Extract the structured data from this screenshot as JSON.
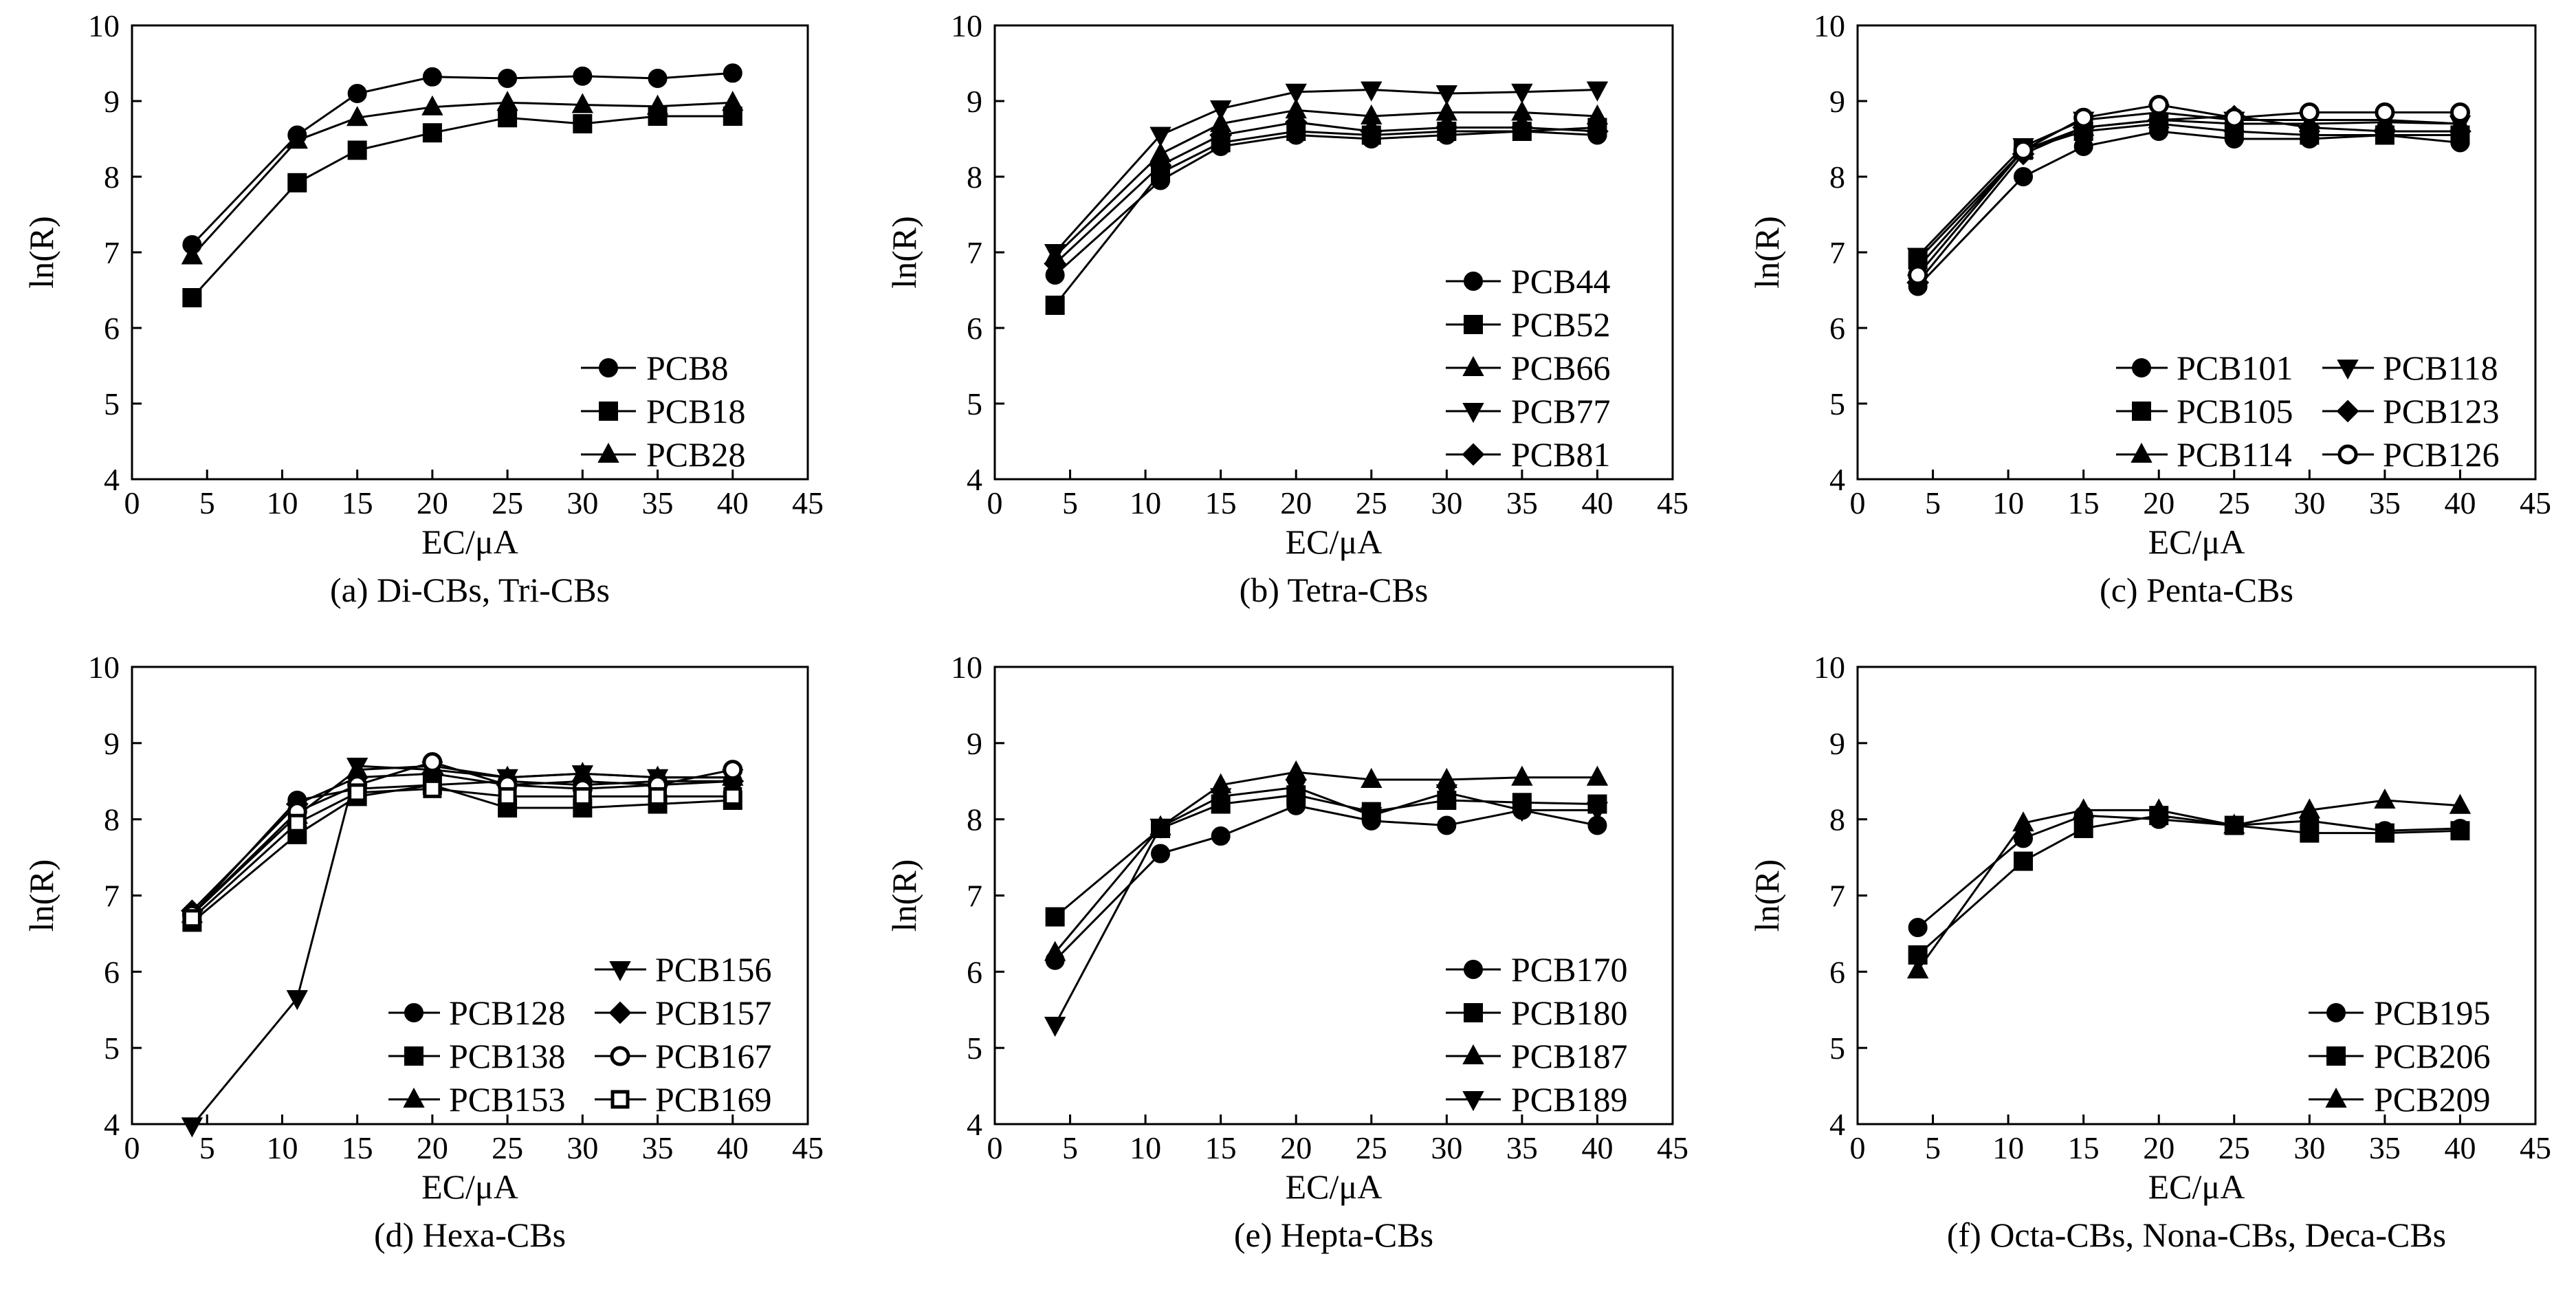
{
  "figure": {
    "panels": [
      {
        "caption": "(a) Di-CBs, Tri-CBs"
      },
      {
        "caption": "(b) Tetra-CBs"
      },
      {
        "caption": "(c) Penta-CBs"
      },
      {
        "caption": "(d) Hexa-CBs"
      },
      {
        "caption": "(e) Hepta-CBs"
      },
      {
        "caption": "(f) Octa-CBs, Nona-CBs, Deca-CBs"
      }
    ]
  },
  "chart_data": [
    {
      "type": "line",
      "caption": "(a) Di-CBs, Tri-CBs",
      "xlabel": "EC/μA",
      "ylabel": "ln(R)",
      "xlim": [
        0,
        45
      ],
      "ylim": [
        4,
        10
      ],
      "xticks": [
        0,
        5,
        10,
        15,
        20,
        25,
        30,
        35,
        40,
        45
      ],
      "yticks": [
        4,
        5,
        6,
        7,
        8,
        9,
        10
      ],
      "x": [
        4,
        11,
        15,
        20,
        25,
        30,
        35,
        40
      ],
      "legend_position": "bottom-right",
      "legend_columns": 1,
      "series": [
        {
          "name": "PCB8",
          "marker": "circle",
          "values": [
            7.1,
            8.55,
            9.1,
            9.32,
            9.3,
            9.33,
            9.3,
            9.37
          ]
        },
        {
          "name": "PCB18",
          "marker": "square",
          "values": [
            6.4,
            7.92,
            8.35,
            8.58,
            8.78,
            8.7,
            8.8,
            8.8
          ]
        },
        {
          "name": "PCB28",
          "marker": "triangle-up",
          "values": [
            6.95,
            8.48,
            8.78,
            8.92,
            8.98,
            8.95,
            8.93,
            8.98
          ]
        }
      ]
    },
    {
      "type": "line",
      "caption": "(b) Tetra-CBs",
      "xlabel": "EC/μA",
      "ylabel": "ln(R)",
      "xlim": [
        0,
        45
      ],
      "ylim": [
        4,
        10
      ],
      "xticks": [
        0,
        5,
        10,
        15,
        20,
        25,
        30,
        35,
        40,
        45
      ],
      "yticks": [
        4,
        5,
        6,
        7,
        8,
        9,
        10
      ],
      "x": [
        4,
        11,
        15,
        20,
        25,
        30,
        35,
        40
      ],
      "legend_position": "bottom-right",
      "legend_columns": 1,
      "series": [
        {
          "name": "PCB44",
          "marker": "circle",
          "values": [
            6.7,
            7.95,
            8.4,
            8.55,
            8.5,
            8.55,
            8.6,
            8.55
          ]
        },
        {
          "name": "PCB52",
          "marker": "square",
          "values": [
            6.3,
            8.05,
            8.45,
            8.6,
            8.55,
            8.6,
            8.6,
            8.65
          ]
        },
        {
          "name": "PCB66",
          "marker": "triangle-up",
          "values": [
            6.95,
            8.3,
            8.7,
            8.88,
            8.8,
            8.85,
            8.85,
            8.8
          ]
        },
        {
          "name": "PCB77",
          "marker": "triangle-down",
          "values": [
            7.0,
            8.55,
            8.9,
            9.12,
            9.15,
            9.1,
            9.12,
            9.15
          ]
        },
        {
          "name": "PCB81",
          "marker": "diamond",
          "values": [
            6.85,
            8.15,
            8.55,
            8.72,
            8.6,
            8.65,
            8.65,
            8.6
          ]
        }
      ]
    },
    {
      "type": "line",
      "caption": "(c) Penta-CBs",
      "xlabel": "EC/μA",
      "ylabel": "ln(R)",
      "xlim": [
        0,
        45
      ],
      "ylim": [
        4,
        10
      ],
      "xticks": [
        0,
        5,
        10,
        15,
        20,
        25,
        30,
        35,
        40,
        45
      ],
      "yticks": [
        4,
        5,
        6,
        7,
        8,
        9,
        10
      ],
      "x": [
        4,
        11,
        15,
        20,
        25,
        30,
        35,
        40
      ],
      "legend_position": "bottom-right",
      "legend_columns": 2,
      "series": [
        {
          "name": "PCB101",
          "marker": "circle",
          "values": [
            6.55,
            8.0,
            8.4,
            8.6,
            8.5,
            8.5,
            8.55,
            8.45
          ]
        },
        {
          "name": "PCB105",
          "marker": "square",
          "values": [
            6.9,
            8.35,
            8.6,
            8.7,
            8.6,
            8.55,
            8.55,
            8.55
          ]
        },
        {
          "name": "PCB114",
          "marker": "triangle-up",
          "values": [
            6.8,
            8.35,
            8.65,
            8.75,
            8.7,
            8.7,
            8.72,
            8.7
          ]
        },
        {
          "name": "PCB118",
          "marker": "triangle-down",
          "values": [
            6.95,
            8.4,
            8.75,
            8.85,
            8.75,
            8.75,
            8.75,
            8.7
          ]
        },
        {
          "name": "PCB123",
          "marker": "diamond",
          "values": [
            6.6,
            8.3,
            8.65,
            8.75,
            8.8,
            8.65,
            8.6,
            8.6
          ]
        },
        {
          "name": "PCB126",
          "marker": "circle-open",
          "values": [
            6.7,
            8.35,
            8.78,
            8.95,
            8.78,
            8.85,
            8.85,
            8.85
          ]
        }
      ]
    },
    {
      "type": "line",
      "caption": "(d) Hexa-CBs",
      "xlabel": "EC/μA",
      "ylabel": "ln(R)",
      "xlim": [
        0,
        45
      ],
      "ylim": [
        4,
        10
      ],
      "xticks": [
        0,
        5,
        10,
        15,
        20,
        25,
        30,
        35,
        40,
        45
      ],
      "yticks": [
        4,
        5,
        6,
        7,
        8,
        9,
        10
      ],
      "x": [
        4,
        11,
        15,
        20,
        25,
        30,
        35,
        40
      ],
      "legend_position": "bottom-right",
      "legend_columns": 2,
      "legend_order": [
        "PCB156",
        "PCB128",
        "PCB157",
        "PCB138",
        "PCB167",
        "PCB153",
        "PCB169"
      ],
      "series": [
        {
          "name": "PCB128",
          "marker": "circle",
          "values": [
            6.75,
            8.25,
            8.4,
            8.45,
            8.5,
            8.45,
            8.5,
            8.5
          ]
        },
        {
          "name": "PCB138",
          "marker": "square",
          "values": [
            6.65,
            7.8,
            8.3,
            8.45,
            8.15,
            8.15,
            8.2,
            8.25
          ]
        },
        {
          "name": "PCB153",
          "marker": "triangle-up",
          "values": [
            6.75,
            8.05,
            8.65,
            8.7,
            8.55,
            8.6,
            8.55,
            8.55
          ]
        },
        {
          "name": "PCB156",
          "marker": "triangle-down",
          "values": [
            3.98,
            5.65,
            8.7,
            8.65,
            8.55,
            8.6,
            8.55,
            8.55
          ]
        },
        {
          "name": "PCB157",
          "marker": "diamond",
          "values": [
            6.8,
            8.2,
            8.55,
            8.6,
            8.45,
            8.5,
            8.45,
            8.5
          ]
        },
        {
          "name": "PCB167",
          "marker": "circle-open",
          "values": [
            6.75,
            8.1,
            8.45,
            8.75,
            8.45,
            8.4,
            8.45,
            8.65
          ]
        },
        {
          "name": "PCB169",
          "marker": "square-open",
          "values": [
            6.7,
            7.95,
            8.35,
            8.4,
            8.3,
            8.3,
            8.3,
            8.3
          ]
        }
      ]
    },
    {
      "type": "line",
      "caption": "(e) Hepta-CBs",
      "xlabel": "EC/μA",
      "ylabel": "ln(R)",
      "xlim": [
        0,
        45
      ],
      "ylim": [
        4,
        10
      ],
      "xticks": [
        0,
        5,
        10,
        15,
        20,
        25,
        30,
        35,
        40,
        45
      ],
      "yticks": [
        4,
        5,
        6,
        7,
        8,
        9,
        10
      ],
      "x": [
        4,
        11,
        15,
        20,
        25,
        30,
        35,
        40
      ],
      "legend_position": "bottom-right",
      "legend_columns": 1,
      "series": [
        {
          "name": "PCB170",
          "marker": "circle",
          "values": [
            6.15,
            7.55,
            7.78,
            8.18,
            7.98,
            7.92,
            8.12,
            7.92
          ]
        },
        {
          "name": "PCB180",
          "marker": "square",
          "values": [
            6.72,
            7.88,
            8.2,
            8.32,
            8.1,
            8.25,
            8.22,
            8.2
          ]
        },
        {
          "name": "PCB187",
          "marker": "triangle-up",
          "values": [
            6.25,
            7.9,
            8.45,
            8.62,
            8.52,
            8.52,
            8.55,
            8.55
          ]
        },
        {
          "name": "PCB189",
          "marker": "triangle-down",
          "values": [
            5.3,
            7.9,
            8.3,
            8.42,
            8.05,
            8.35,
            8.12,
            8.12
          ]
        }
      ]
    },
    {
      "type": "line",
      "caption": "(f) Octa-CBs, Nona-CBs, Deca-CBs",
      "xlabel": "EC/μA",
      "ylabel": "ln(R)",
      "xlim": [
        0,
        45
      ],
      "ylim": [
        4,
        10
      ],
      "xticks": [
        0,
        5,
        10,
        15,
        20,
        25,
        30,
        35,
        40,
        45
      ],
      "yticks": [
        4,
        5,
        6,
        7,
        8,
        9,
        10
      ],
      "x": [
        4,
        11,
        15,
        20,
        25,
        30,
        35,
        40
      ],
      "legend_position": "bottom-right",
      "legend_columns": 1,
      "series": [
        {
          "name": "PCB195",
          "marker": "circle",
          "values": [
            6.58,
            7.75,
            8.05,
            8.0,
            7.92,
            7.98,
            7.85,
            7.88
          ]
        },
        {
          "name": "PCB206",
          "marker": "square",
          "values": [
            6.22,
            7.45,
            7.88,
            8.05,
            7.92,
            7.82,
            7.82,
            7.85
          ]
        },
        {
          "name": "PCB209",
          "marker": "triangle-up",
          "values": [
            6.02,
            7.95,
            8.12,
            8.12,
            7.92,
            8.12,
            8.25,
            8.18
          ]
        }
      ]
    }
  ]
}
